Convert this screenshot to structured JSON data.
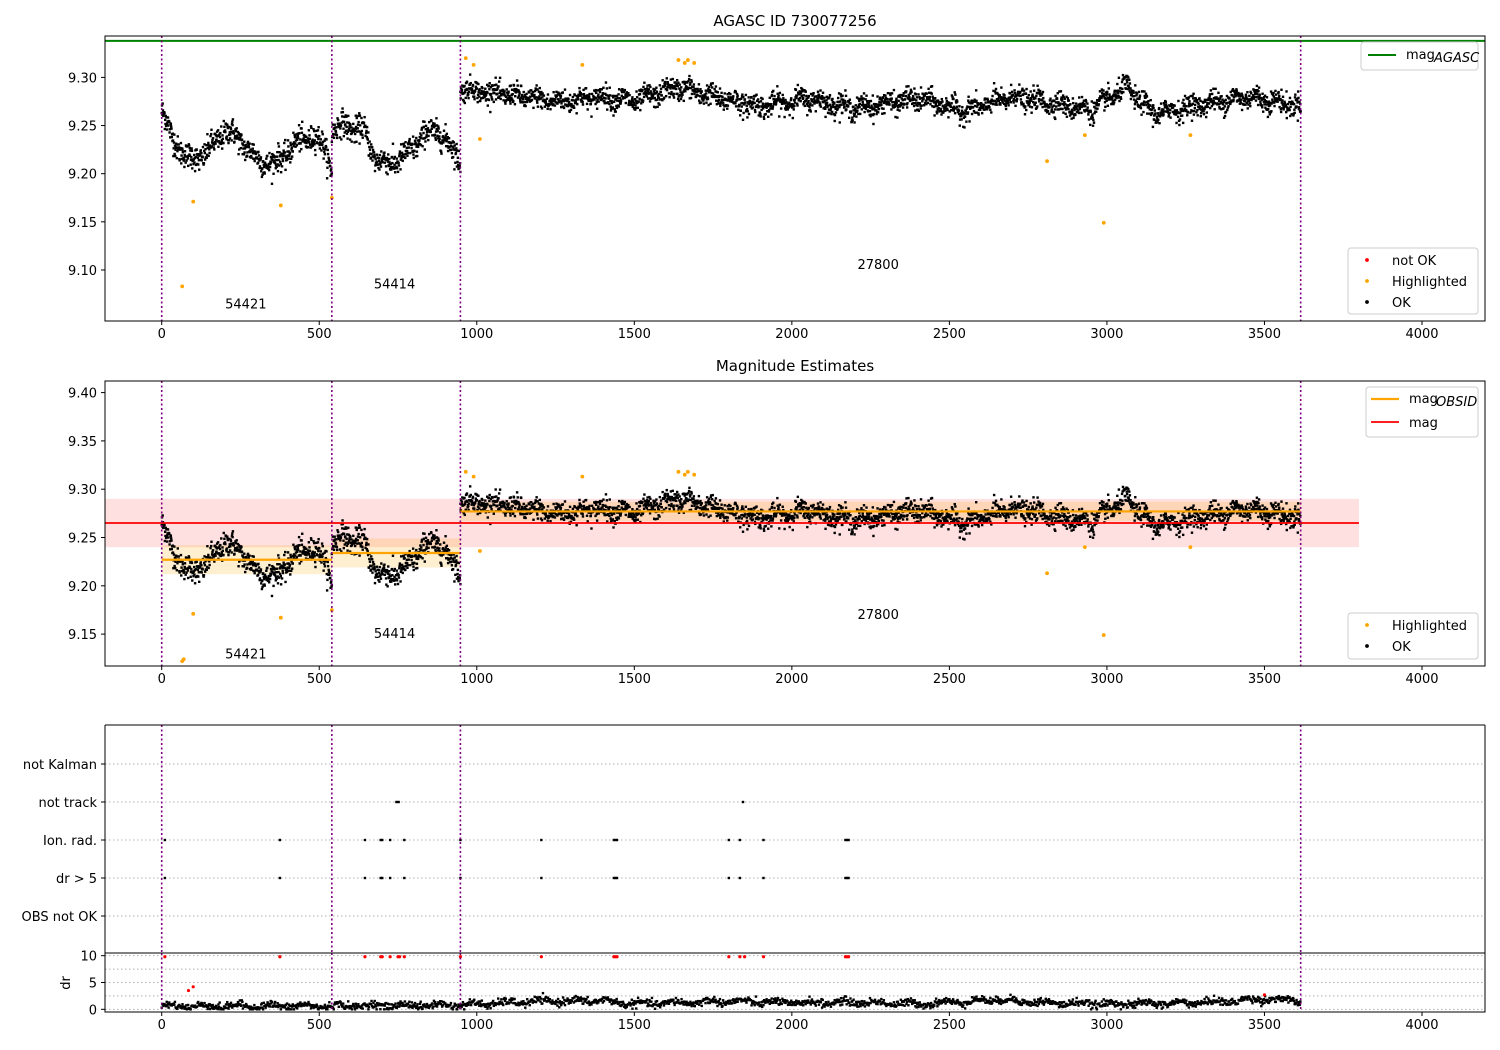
{
  "colors": {
    "ok": "#000000",
    "highlighted": "#ffa500",
    "not_ok": "#ff0000",
    "mag_agasc": "#008000",
    "mag_obsid": "#ffa500",
    "mag": "#ff0000",
    "obs_boundary": "#800080",
    "grid": "#b0b0b0"
  },
  "chart_data": [
    {
      "type": "scatter",
      "title": "AGASC ID 730077256",
      "xlim": [
        -180,
        4200
      ],
      "ylim": [
        9.047,
        9.343
      ],
      "xticks": [
        0,
        500,
        1000,
        1500,
        2000,
        2500,
        3000,
        3500,
        4000
      ],
      "yticks": [
        9.1,
        9.15,
        9.2,
        9.25,
        9.3
      ],
      "hlines": [
        {
          "name": "mag_AGASC",
          "y": 9.338,
          "color": "#008000"
        }
      ],
      "obs_boundaries": [
        0,
        540,
        948,
        3615
      ],
      "observations": [
        {
          "obsid": "54421",
          "x_start": 0,
          "x_end": 540,
          "label_x": 267,
          "label_y": 9.065
        },
        {
          "obsid": "54414",
          "x_start": 540,
          "x_end": 948,
          "label_x": 739,
          "label_y": 9.086
        },
        {
          "obsid": "27800",
          "x_start": 948,
          "x_end": 3615,
          "label_x": 2274,
          "label_y": 9.106
        }
      ],
      "series": [
        {
          "name": "not OK",
          "color": "#ff0000",
          "x": [],
          "y": []
        },
        {
          "name": "Highlighted",
          "color": "#ffa500",
          "x": [
            65,
            100,
            378,
            540,
            965,
            990,
            1010,
            1335,
            1640,
            1660,
            1670,
            1690,
            2810,
            2930,
            2990,
            3265
          ],
          "y": [
            9.083,
            9.171,
            9.167,
            9.175,
            9.32,
            9.313,
            9.236,
            9.313,
            9.318,
            9.315,
            9.318,
            9.315,
            9.213,
            9.24,
            9.149,
            9.24
          ]
        },
        {
          "name": "OK",
          "color": "#000000",
          "segments": [
            {
              "x": [
                0,
                30,
                80,
                140,
                200,
                250,
                300,
                360,
                420,
                480,
                520,
                540
              ],
              "y": [
                9.265,
                9.24,
                9.215,
                9.22,
                9.245,
                9.235,
                9.215,
                9.21,
                9.23,
                9.24,
                9.225,
                9.205
              ],
              "spread": 0.012
            },
            {
              "x": [
                540,
                580,
                640,
                680,
                720,
                780,
                830,
                880,
                920,
                948
              ],
              "y": [
                9.245,
                9.25,
                9.245,
                9.215,
                9.21,
                9.22,
                9.24,
                9.245,
                9.225,
                9.215
              ],
              "spread": 0.012
            },
            {
              "x": [
                948,
                1100,
                1250,
                1400,
                1500,
                1640,
                1750,
                1900,
                2050,
                2200,
                2400,
                2550,
                2700,
                2850,
                2950,
                3060,
                3150,
                3300,
                3450,
                3615
              ],
              "y": [
                9.288,
                9.282,
                9.275,
                9.28,
                9.275,
                9.29,
                9.28,
                9.27,
                9.278,
                9.268,
                9.278,
                9.265,
                9.28,
                9.272,
                9.266,
                9.29,
                9.262,
                9.272,
                9.28,
                9.27
              ],
              "spread": 0.01
            }
          ]
        }
      ],
      "legends": [
        {
          "location": "upper right",
          "entries": [
            {
              "label": "mag",
              "sub": "AGASC",
              "kind": "line",
              "color": "#008000"
            }
          ]
        },
        {
          "location": "lower right",
          "entries": [
            {
              "label": "not OK",
              "kind": "marker",
              "color": "#ff0000"
            },
            {
              "label": "Highlighted",
              "kind": "marker",
              "color": "#ffa500"
            },
            {
              "label": "OK",
              "kind": "marker",
              "color": "#000000"
            }
          ]
        }
      ]
    },
    {
      "type": "scatter",
      "title": "Magnitude Estimates",
      "xlim": [
        -180,
        4200
      ],
      "ylim": [
        9.117,
        9.412
      ],
      "xticks": [
        0,
        500,
        1000,
        1500,
        2000,
        2500,
        3000,
        3500,
        4000
      ],
      "yticks": [
        9.15,
        9.2,
        9.25,
        9.3,
        9.35,
        9.4
      ],
      "obs_boundaries": [
        0,
        540,
        948,
        3615
      ],
      "mag": {
        "value": 9.265,
        "sigma": 0.025,
        "x_start": -180,
        "x_end": 3800,
        "color": "#ff0000"
      },
      "mag_obsid": [
        {
          "x_start": 0,
          "x_end": 540,
          "value": 9.227,
          "sigma": 0.015
        },
        {
          "x_start": 540,
          "x_end": 948,
          "value": 9.234,
          "sigma": 0.015
        },
        {
          "x_start": 948,
          "x_end": 3615,
          "value": 9.277,
          "sigma": 0.01
        }
      ],
      "observations": [
        {
          "obsid": "54421",
          "label_x": 267,
          "label_y": 9.13
        },
        {
          "obsid": "54414",
          "label_x": 739,
          "label_y": 9.151
        },
        {
          "obsid": "27800",
          "label_x": 2274,
          "label_y": 9.171
        }
      ],
      "series": [
        {
          "name": "Highlighted",
          "color": "#ffa500",
          "x": [
            65,
            70,
            100,
            378,
            540,
            965,
            990,
            1010,
            1335,
            1640,
            1660,
            1670,
            1690,
            2810,
            2930,
            2990,
            3265
          ],
          "y": [
            9.122,
            9.124,
            9.171,
            9.167,
            9.175,
            9.318,
            9.313,
            9.236,
            9.313,
            9.318,
            9.315,
            9.318,
            9.315,
            9.213,
            9.24,
            9.149,
            9.24
          ]
        },
        {
          "name": "OK",
          "color": "#000000",
          "same_as_panel": 0
        }
      ],
      "legends": [
        {
          "location": "upper right",
          "entries": [
            {
              "label": "mag",
              "sub": "OBSID",
              "kind": "line",
              "color": "#ffa500"
            },
            {
              "label": "mag",
              "kind": "line",
              "color": "#ff0000"
            }
          ]
        },
        {
          "location": "lower right",
          "entries": [
            {
              "label": "Highlighted",
              "kind": "marker",
              "color": "#ffa500"
            },
            {
              "label": "OK",
              "kind": "marker",
              "color": "#000000"
            }
          ]
        }
      ]
    },
    {
      "type": "scatter",
      "title": "",
      "xlim": [
        -180,
        4200
      ],
      "categories": [
        "not Kalman",
        "not track",
        "Ion. rad.",
        "dr > 5",
        "OBS not OK"
      ],
      "obs_boundaries": [
        0,
        540,
        948,
        3615
      ],
      "flags": {
        "not Kalman": [],
        "not track": [
          745,
          752,
          1845
        ],
        "Ion. rad.": [
          10,
          375,
          645,
          695,
          700,
          725,
          770,
          948,
          1205,
          1435,
          1440,
          1445,
          1800,
          1835,
          1910,
          2170,
          2175,
          2180
        ],
        "dr > 5": [
          10,
          375,
          645,
          695,
          700,
          725,
          770,
          948,
          1205,
          1435,
          1440,
          1445,
          1800,
          1835,
          1910,
          2170,
          2175,
          2180
        ],
        "OBS not OK": []
      }
    },
    {
      "type": "scatter",
      "title": "",
      "ylabel": "dr",
      "xlim": [
        -180,
        4200
      ],
      "ylim": [
        -0.5,
        10.5
      ],
      "xticks": [
        0,
        500,
        1000,
        1500,
        2000,
        2500,
        3000,
        3500,
        4000
      ],
      "yticks": [
        0,
        5,
        10
      ],
      "dr_baseline": {
        "x": [
          0,
          500,
          948,
          1200,
          1400,
          1500,
          1800,
          2000,
          2200,
          2400,
          2660,
          2800,
          3000,
          3200,
          3400,
          3500,
          3615
        ],
        "y": [
          0.6,
          0.6,
          0.8,
          1.5,
          1.6,
          1.0,
          1.5,
          1.2,
          1.3,
          1.0,
          1.8,
          1.2,
          1.0,
          1.1,
          1.5,
          2.0,
          1.5
        ]
      },
      "not_ok": {
        "x": [
          10,
          85,
          100,
          375,
          645,
          695,
          700,
          725,
          750,
          755,
          770,
          948,
          1205,
          1435,
          1440,
          1445,
          1800,
          1835,
          1850,
          1910,
          2170,
          2175,
          2180,
          3500
        ],
        "y": [
          9.8,
          3.5,
          4.2,
          9.8,
          9.8,
          9.8,
          9.8,
          9.8,
          9.8,
          9.8,
          9.8,
          9.8,
          9.8,
          9.8,
          9.8,
          9.8,
          9.8,
          9.8,
          9.8,
          9.8,
          9.8,
          9.8,
          9.8,
          2.7
        ]
      }
    }
  ]
}
